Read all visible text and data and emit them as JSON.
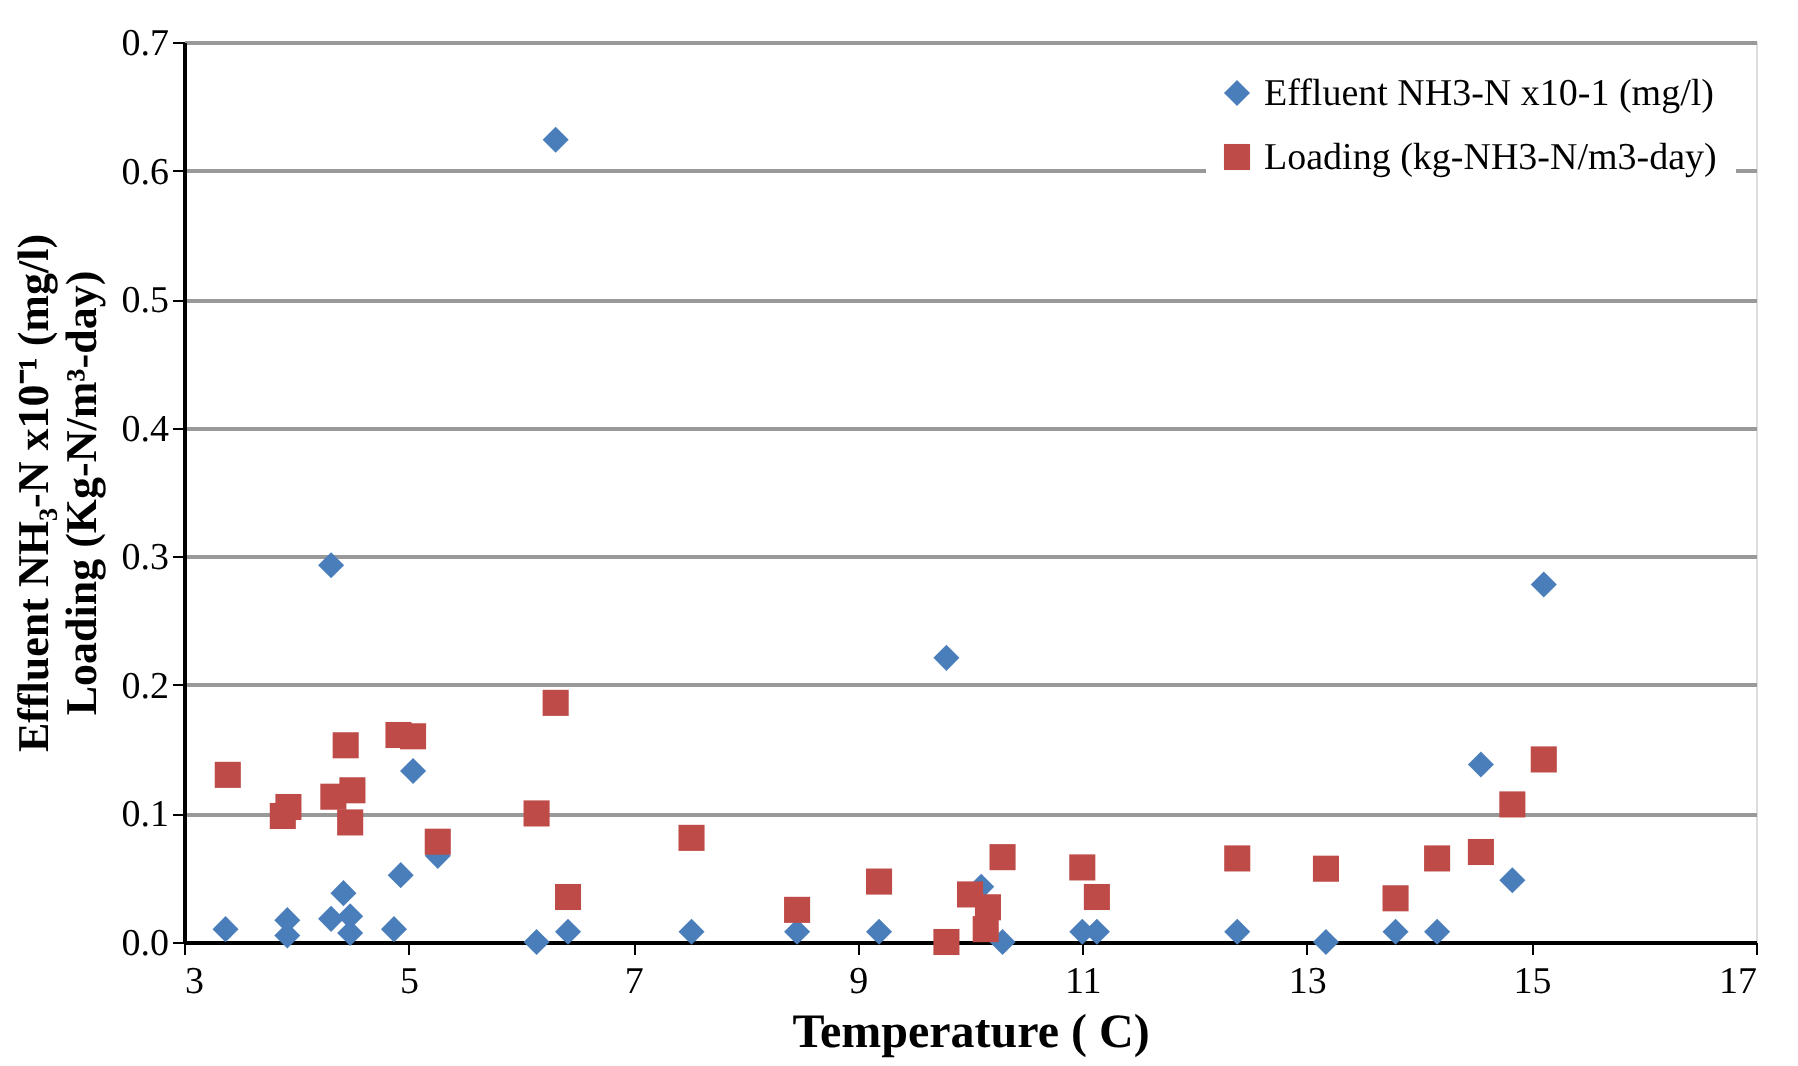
{
  "chart_data": {
    "type": "scatter",
    "xlabel": "Temperature  ( C)",
    "ylabel": [
      "Effluent NH₃-N x10⁻¹  (mg/l)",
      "Loading (Kg-N/m³-day)"
    ],
    "xlim": [
      3,
      17
    ],
    "xticks": [
      3,
      5,
      7,
      9,
      11,
      13,
      15,
      17
    ],
    "ylim": [
      0,
      0.7
    ],
    "yticks": [
      {
        "value": 0,
        "label": "0.0"
      },
      0.1,
      0.2,
      0.3,
      0.4,
      0.5,
      0.6,
      0.7
    ],
    "grid": "y",
    "legend": "top right",
    "series": [
      {
        "name": "Effluent NH3-N x10-1  (mg/l)",
        "color": "#4a7ebb",
        "marker": "diamond",
        "x": [
          3.37,
          3.92,
          3.92,
          4.31,
          4.42,
          4.48,
          4.48,
          4.31,
          4.87,
          4.93,
          5.04,
          5.26,
          6.14,
          6.42,
          6.31,
          7.52,
          8.46,
          9.19,
          9.79,
          10.1,
          10.29,
          11.0,
          11.13,
          12.38,
          13.17,
          13.79,
          14.16,
          14.55,
          14.83,
          15.11
        ],
        "values": [
          0.01,
          0.017,
          0.005,
          0.018,
          0.038,
          0.02,
          0.007,
          0.293,
          0.01,
          0.052,
          0.133,
          0.067,
          0.0,
          0.008,
          0.624,
          0.008,
          0.008,
          0.008,
          0.221,
          0.043,
          0.0,
          0.008,
          0.008,
          0.008,
          0.0,
          0.008,
          0.008,
          0.138,
          0.048,
          0.278
        ]
      },
      {
        "name": "Loading (kg-NH3-N/m3-day)",
        "color": "#be4b48",
        "marker": "square",
        "x": [
          3.39,
          3.88,
          3.93,
          4.44,
          4.33,
          4.5,
          4.48,
          4.91,
          5.04,
          5.26,
          6.14,
          6.31,
          6.42,
          7.52,
          8.46,
          9.19,
          9.79,
          10.0,
          10.16,
          10.14,
          10.29,
          11.0,
          11.13,
          12.38,
          13.17,
          13.79,
          14.16,
          14.55,
          14.83,
          15.11
        ],
        "values": [
          0.13,
          0.098,
          0.105,
          0.153,
          0.113,
          0.118,
          0.093,
          0.161,
          0.16,
          0.078,
          0.1,
          0.186,
          0.035,
          0.081,
          0.025,
          0.047,
          0.0,
          0.037,
          0.027,
          0.01,
          0.066,
          0.058,
          0.035,
          0.065,
          0.057,
          0.034,
          0.065,
          0.07,
          0.107,
          0.142
        ]
      }
    ]
  }
}
